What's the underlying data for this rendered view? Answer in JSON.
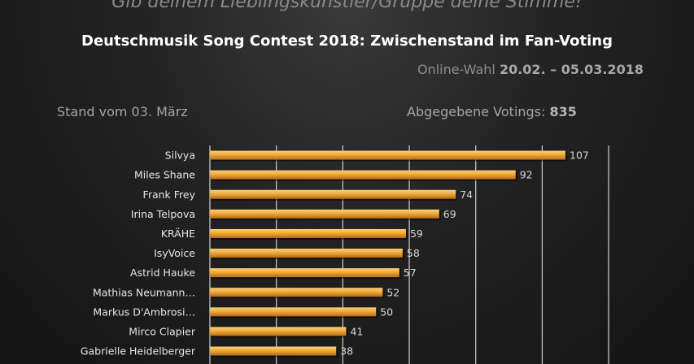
{
  "header": {
    "tagline": "Gib deinem Lieblingskünstler/Gruppe deine Stimme!",
    "title": "Deutschmusik Song Contest 2018: Zwischenstand im Fan-Voting",
    "subtitle_prefix": "Online-Wahl",
    "subtitle_dates": "20.02. – 05.03.2018",
    "stand": "Stand vom 03. März",
    "votes_label": "Abgegebene Votings:",
    "votes_total": "835"
  },
  "colors": {
    "bar": "#f0a93a",
    "bar_dark": "#b86d14",
    "grid": "#cfcfcf",
    "label": "#e6e6e6",
    "value": "#d8d8d8"
  },
  "chart_data": {
    "type": "bar",
    "orientation": "horizontal",
    "categories": [
      "Silvya",
      "Miles Shane",
      "Frank Frey",
      "Irina Telpova",
      "KRÄHE",
      "IsyVoice",
      "Astrid Hauke",
      "Mathias Neumann…",
      "Markus D'Ambrosi…",
      "Mirco Clapier",
      "Gabrielle Heidelberger"
    ],
    "values": [
      107,
      92,
      74,
      69,
      59,
      58,
      57,
      52,
      50,
      41,
      38
    ],
    "xlim": [
      0,
      120
    ],
    "grid": true,
    "data_labels": true
  }
}
